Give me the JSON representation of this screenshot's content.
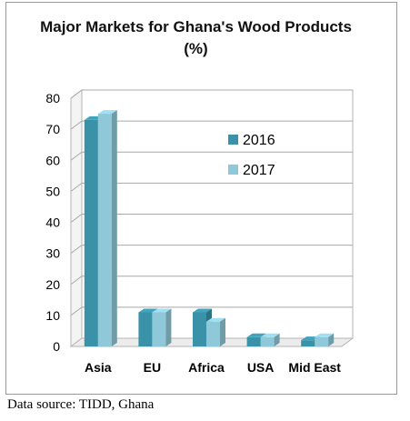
{
  "chart_data": {
    "type": "bar",
    "title": "Major Markets for Ghana's Wood Products (%)",
    "categories": [
      "Asia",
      "EU",
      "Africa",
      "USA",
      "Mid East"
    ],
    "series": [
      {
        "name": "2016",
        "values": [
          73,
          11,
          11,
          3,
          2
        ],
        "color": "#3a92a8"
      },
      {
        "name": "2017",
        "values": [
          75,
          11,
          8,
          3,
          3
        ],
        "color": "#8fc8d8"
      }
    ],
    "ylim": [
      0,
      80
    ],
    "yticks": [
      0,
      10,
      20,
      30,
      40,
      50,
      60,
      70,
      80
    ],
    "grid": true,
    "style": "3d",
    "legend_position": "right-inside"
  },
  "caption": "Data source: TIDD, Ghana"
}
